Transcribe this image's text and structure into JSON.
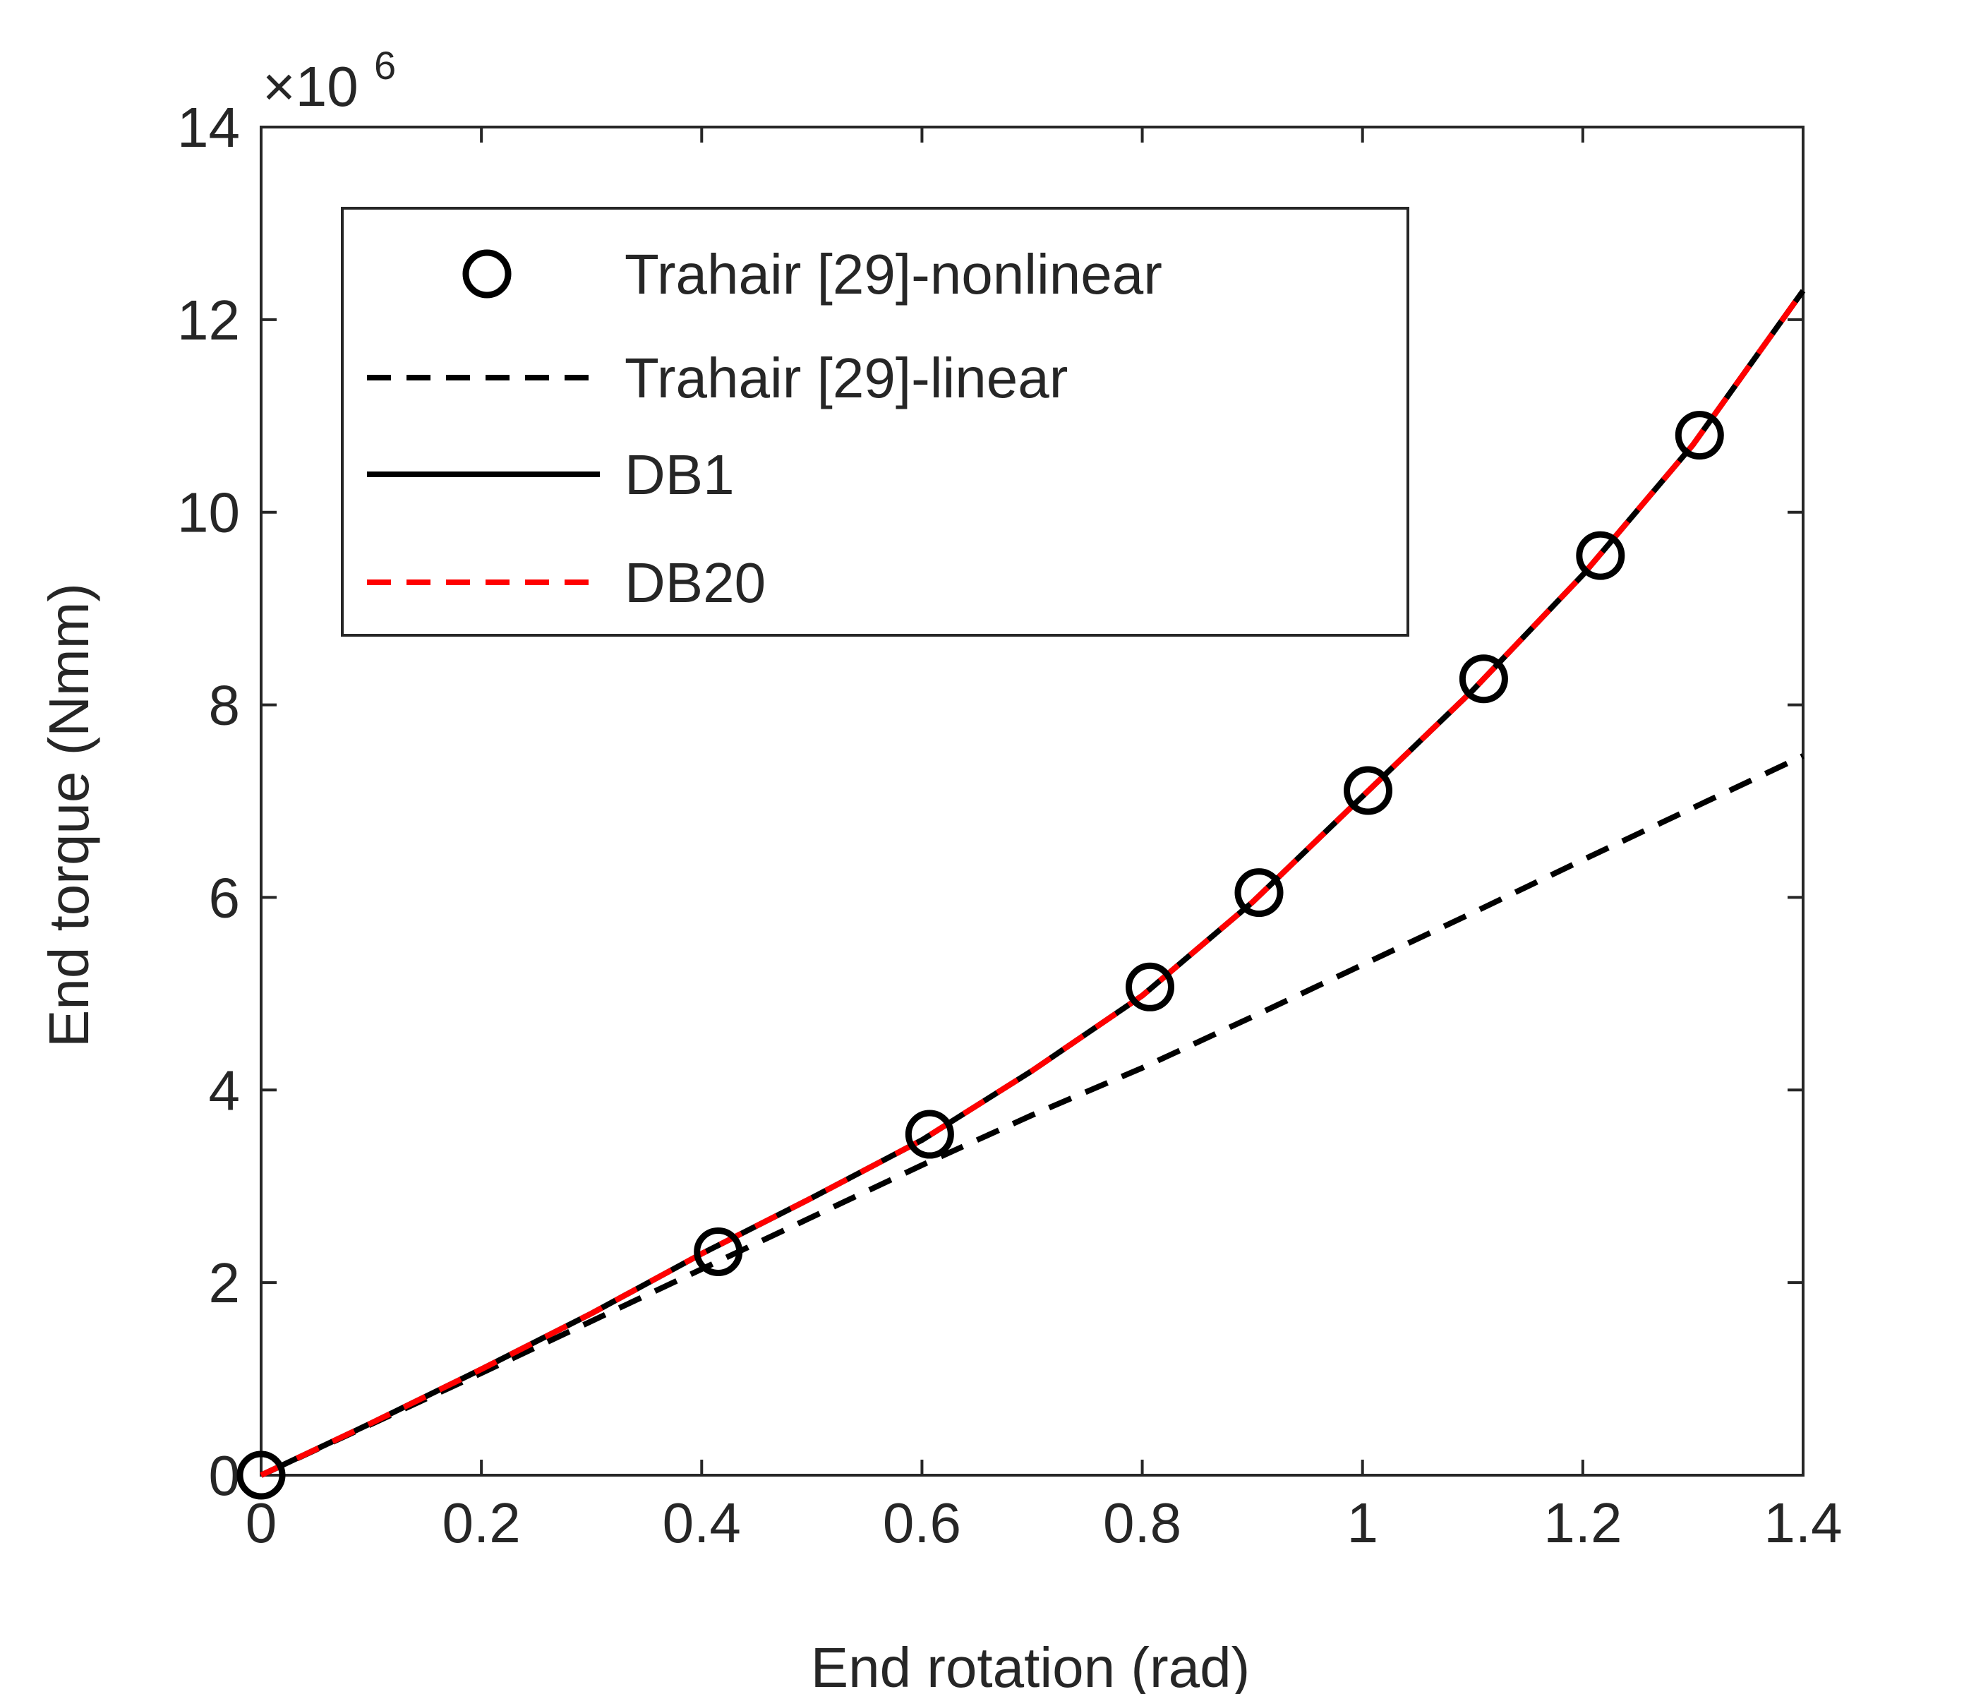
{
  "chart_data": {
    "type": "line",
    "xlabel": "End rotation (rad)",
    "ylabel": "End torque (Nmm)",
    "y_exponent_label": "×10",
    "y_exponent_power": "6",
    "xlim": [
      0,
      1.4
    ],
    "ylim": [
      0,
      14
    ],
    "xticks": [
      0,
      0.2,
      0.4,
      0.6,
      0.8,
      1,
      1.2,
      1.4
    ],
    "xtick_labels": [
      "0",
      "0.2",
      "0.4",
      "0.6",
      "0.8",
      "1",
      "1.2",
      "1.4"
    ],
    "yticks": [
      0,
      2,
      4,
      6,
      8,
      10,
      12,
      14
    ],
    "ytick_labels": [
      "0",
      "2",
      "4",
      "6",
      "8",
      "10",
      "12",
      "14"
    ],
    "grid": false,
    "legend_position": "top-left",
    "series": [
      {
        "name": "Trahair [29]-nonlinear",
        "style": "markers",
        "color": "#000000",
        "x": [
          0,
          0.415,
          0.607,
          0.807,
          0.906,
          1.005,
          1.11,
          1.216,
          1.306
        ],
        "y": [
          0,
          2.32,
          3.54,
          5.07,
          6.05,
          7.11,
          8.27,
          9.55,
          10.8
        ]
      },
      {
        "name": "Trahair [29]-linear",
        "style": "dashed",
        "color": "#000000",
        "x": [
          0,
          0.1,
          0.2,
          0.3,
          0.4,
          0.5,
          0.6,
          0.7,
          0.8,
          0.9,
          1.0,
          1.1,
          1.2,
          1.3,
          1.4
        ],
        "y": [
          0,
          0.53,
          1.06,
          1.6,
          2.14,
          2.68,
          3.22,
          3.74,
          4.23,
          4.76,
          5.3,
          5.84,
          6.39,
          6.93,
          7.47
        ]
      },
      {
        "name": "DB1",
        "style": "solid",
        "color": "#000000",
        "x": [
          0,
          0.1,
          0.2,
          0.3,
          0.4,
          0.5,
          0.6,
          0.7,
          0.8,
          0.9,
          1.0,
          1.1,
          1.2,
          1.3,
          1.4
        ],
        "y": [
          0,
          0.54,
          1.1,
          1.68,
          2.3,
          2.88,
          3.48,
          4.2,
          4.98,
          5.95,
          7.05,
          8.15,
          9.35,
          10.7,
          12.3
        ]
      },
      {
        "name": "DB20",
        "style": "dashed",
        "color": "#ff0000",
        "x": [
          0,
          0.1,
          0.2,
          0.3,
          0.4,
          0.5,
          0.6,
          0.7,
          0.8,
          0.9,
          1.0,
          1.1,
          1.2,
          1.3,
          1.4
        ],
        "y": [
          0,
          0.54,
          1.1,
          1.68,
          2.3,
          2.88,
          3.48,
          4.2,
          4.98,
          5.95,
          7.05,
          8.15,
          9.35,
          10.7,
          12.3
        ]
      }
    ]
  }
}
